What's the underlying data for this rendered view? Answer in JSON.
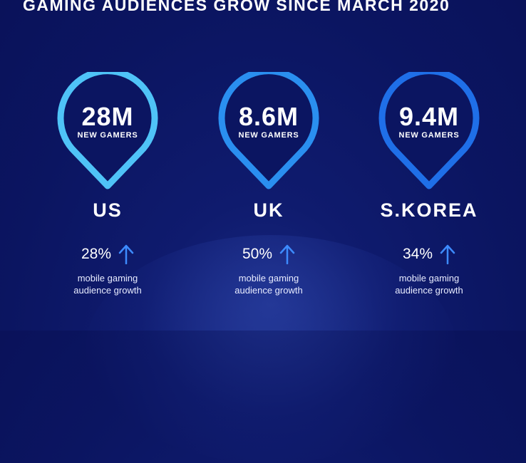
{
  "title": "GAMING AUDIENCES GROW SINCE MARCH 2020",
  "colors": {
    "background": "#0b1561",
    "pin_light": "#4fc3f7",
    "pin_mid": "#2a8ff0",
    "pin_dark": "#1f6fe8",
    "arrow": "#3d8bff"
  },
  "markets": [
    {
      "stat": "28M",
      "stat_label": "NEW GAMERS",
      "country": "US",
      "growth": "28%",
      "growth_icon": "up-arrow-icon",
      "desc_line1": "mobile gaming",
      "desc_line2": "audience growth"
    },
    {
      "stat": "8.6M",
      "stat_label": "NEW GAMERS",
      "country": "UK",
      "growth": "50%",
      "growth_icon": "up-arrow-icon",
      "desc_line1": "mobile gaming",
      "desc_line2": "audience growth"
    },
    {
      "stat": "9.4M",
      "stat_label": "NEW GAMERS",
      "country": "S.KOREA",
      "growth": "34%",
      "growth_icon": "up-arrow-icon",
      "desc_line1": "mobile gaming",
      "desc_line2": "audience growth"
    }
  ]
}
